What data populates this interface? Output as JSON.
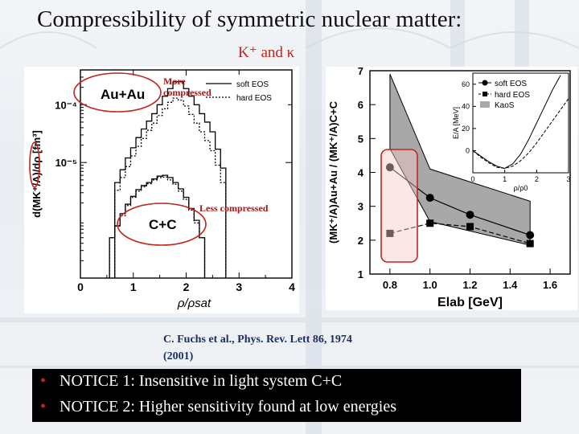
{
  "slide": {
    "title": "Compressibility of symmetric nuclear matter:",
    "subtitle": "K⁺  and  κ",
    "annotations": {
      "more_line1": "More",
      "more_line2": "compressed",
      "less": "Less compressed"
    },
    "citation_line1": "C. Fuchs et al., Phys. Rev. Lett 86, 1974",
    "citation_line2": "(2001)",
    "notices": [
      {
        "bullet": "•",
        "text": "NOTICE 1:  Insensitive in light system C+C"
      },
      {
        "bullet": "•",
        "text": "NOTICE 2:  Higher sensitivity found at low energies"
      }
    ]
  },
  "colors": {
    "accent_red": "#c0261f",
    "citation_blue": "#1c2f63",
    "notice_bg": "#000000",
    "highlight_fill": "#f6c9c9"
  },
  "chart_data": [
    {
      "type": "line",
      "xlabel": "ρ/ρsat",
      "ylabel": "d(MK⁺/A)/dρ [fm³]",
      "xlim": [
        0,
        4
      ],
      "ylim": [
        1e-07,
        0.0004
      ],
      "yscale": "log",
      "xticks": [
        "0",
        "1",
        "2",
        "3",
        "4"
      ],
      "yticks": [
        "10⁻⁴",
        "10⁻⁵"
      ],
      "legend": [
        "soft EOS",
        "hard EOS"
      ],
      "labels": [
        "Au+Au",
        "C+C"
      ],
      "note": "curves are step histograms",
      "series": [
        {
          "name": "Au+Au soft EOS",
          "dash": "solid",
          "x": [
            0.7,
            0.8,
            0.9,
            1.0,
            1.1,
            1.2,
            1.3,
            1.4,
            1.5,
            1.6,
            1.7,
            1.8,
            1.9,
            2.0,
            2.1,
            2.2,
            2.3,
            2.4,
            2.5,
            2.6,
            2.7
          ],
          "y": [
            4.5e-06,
            7.5e-06,
            1.2e-05,
            1.8e-05,
            2.7e-05,
            3.8e-05,
            5.2e-05,
            7e-05,
            0.0001,
            0.00014,
            0.00019,
            0.00025,
            0.00025,
            0.00019,
            0.00014,
            0.0001,
            7e-05,
            5e-05,
            3.4e-05,
            1.7e-05,
            8e-06
          ]
        },
        {
          "name": "Au+Au hard EOS",
          "dash": "dashed",
          "x": [
            0.7,
            0.8,
            0.9,
            1.0,
            1.1,
            1.2,
            1.3,
            1.4,
            1.5,
            1.6,
            1.7,
            1.8,
            1.9,
            2.0,
            2.1,
            2.2,
            2.3,
            2.4,
            2.5,
            2.6,
            2.7
          ],
          "y": [
            3.3e-06,
            5.5e-06,
            8.5e-06,
            1.3e-05,
            1.9e-05,
            2.6e-05,
            3.6e-05,
            4.8e-05,
            6.5e-05,
            8.5e-05,
            0.00011,
            0.00013,
            0.00012,
            9.5e-05,
            6.8e-05,
            4.8e-05,
            3.4e-05,
            2.4e-05,
            1.6e-05,
            9e-06,
            4.5e-06
          ]
        },
        {
          "name": "C+C soft EOS",
          "dash": "solid",
          "x": [
            0.6,
            0.7,
            0.8,
            0.9,
            1.0,
            1.1,
            1.2,
            1.3,
            1.4,
            1.5,
            1.6,
            1.7,
            1.8,
            1.9,
            2.0,
            2.1,
            2.2,
            2.3
          ],
          "y": [
            5e-07,
            8e-07,
            1.3e-06,
            1.9e-06,
            2.6e-06,
            3.4e-06,
            4e-06,
            4.5e-06,
            5.2e-06,
            5.8e-06,
            6e-06,
            5.5e-06,
            4.5e-06,
            3.5e-06,
            2.5e-06,
            1.6e-06,
            1e-06,
            5e-07
          ]
        },
        {
          "name": "C+C hard EOS",
          "dash": "dashed",
          "x": [
            0.6,
            0.7,
            0.8,
            0.9,
            1.0,
            1.1,
            1.2,
            1.3,
            1.4,
            1.5,
            1.6,
            1.7,
            1.8,
            1.9,
            2.0,
            2.1,
            2.2,
            2.3
          ],
          "y": [
            5e-07,
            8e-07,
            1.2e-06,
            1.8e-06,
            2.5e-06,
            3.2e-06,
            3.8e-06,
            4.3e-06,
            5e-06,
            5.5e-06,
            5.6e-06,
            5e-06,
            4.2e-06,
            3.2e-06,
            2.3e-06,
            1.5e-06,
            9e-07,
            5e-07
          ]
        }
      ]
    },
    {
      "type": "line",
      "xlabel": "Elab [GeV]",
      "ylabel": "(MK⁺/A)Au+Au / (MK⁺/A)C+C",
      "xlim": [
        0.7,
        1.7
      ],
      "ylim": [
        1,
        7
      ],
      "xticks": [
        "0.8",
        "1.0",
        "1.2",
        "1.4",
        "1.6"
      ],
      "yticks": [
        "1",
        "2",
        "3",
        "4",
        "5",
        "6",
        "7"
      ],
      "legend": [
        "soft EOS",
        "hard EOS",
        "KaoS"
      ],
      "series": [
        {
          "name": "soft EOS",
          "marker": "circle",
          "dash": "solid",
          "x": [
            0.8,
            1.0,
            1.2,
            1.5
          ],
          "y": [
            4.15,
            3.25,
            2.75,
            2.15
          ]
        },
        {
          "name": "hard EOS",
          "marker": "square",
          "dash": "dashed",
          "x": [
            0.8,
            1.0,
            1.2,
            1.5
          ],
          "y": [
            2.2,
            2.5,
            2.4,
            1.9
          ]
        },
        {
          "name": "KaoS",
          "type": "band",
          "x": [
            0.8,
            1.0,
            1.5
          ],
          "upper": [
            6.9,
            4.1,
            3.15
          ],
          "lower": [
            4.7,
            2.55,
            1.85
          ]
        }
      ],
      "inset": {
        "type": "line",
        "xlabel": "ρ/ρ0",
        "ylabel": "E/A [MeV]",
        "xlim": [
          0,
          3
        ],
        "ylim": [
          -20,
          70
        ],
        "xticks": [
          "0",
          "1",
          "2",
          "3"
        ],
        "yticks": [
          "0",
          "20",
          "40",
          "60"
        ],
        "series": [
          {
            "name": "soft EOS",
            "dash": "dashed",
            "x": [
              0,
              0.25,
              0.5,
              0.75,
              1,
              1.25,
              1.5,
              1.75,
              2,
              2.25,
              2.5,
              2.75,
              3
            ],
            "y": [
              0,
              -6,
              -11,
              -15,
              -16,
              -14,
              -9,
              -2,
              7,
              17,
              27,
              37,
              47
            ]
          },
          {
            "name": "hard EOS",
            "dash": "solid",
            "x": [
              0,
              0.25,
              0.5,
              0.75,
              1,
              1.25,
              1.5,
              1.75,
              2,
              2.25,
              2.5,
              2.75
            ],
            "y": [
              0,
              -5,
              -10,
              -14,
              -16,
              -12,
              -3,
              10,
              25,
              40,
              55,
              68
            ]
          }
        ]
      }
    }
  ]
}
